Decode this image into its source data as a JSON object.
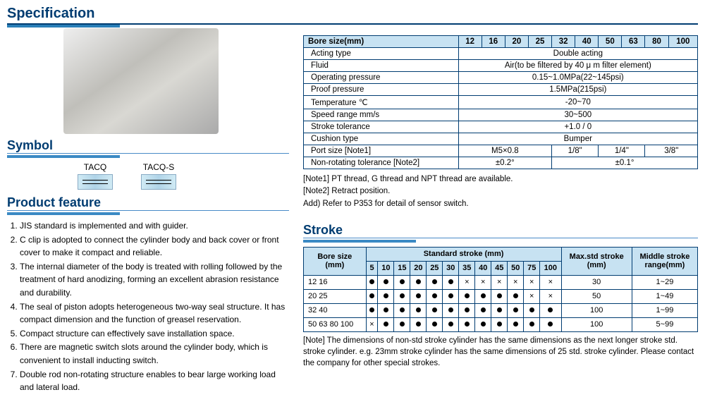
{
  "page": {
    "title": "Specification"
  },
  "symbol": {
    "header": "Symbol",
    "items": [
      "TACQ",
      "TACQ-S"
    ]
  },
  "productFeature": {
    "header": "Product feature",
    "items": [
      "JIS standard is implemented and with guider.",
      "C clip is adopted to connect the cylinder body and back cover or front cover to make it compact and reliable.",
      "The internal diameter of the body is treated with rolling followed by the treatment of hard anodizing, forming an excellent abrasion resistance and durability.",
      "The seal of piston adopts heterogeneous two-way seal structure. It has compact dimension and the function of greasel reservation.",
      "Compact structure can effectively save installation space.",
      "There are magnetic switch slots around the cylinder body, which is convenient to install inducting switch.",
      "Double rod non-rotating structure enables to bear large working load and lateral load."
    ]
  },
  "specTable": {
    "boreHeader": "Bore size(mm)",
    "boreSizes": [
      "12",
      "16",
      "20",
      "25",
      "32",
      "40",
      "50",
      "63",
      "80",
      "100"
    ],
    "rows": [
      {
        "label": "Acting type",
        "cells": [
          {
            "span": 10,
            "text": "Double acting"
          }
        ]
      },
      {
        "label": "Fluid",
        "cells": [
          {
            "span": 10,
            "text": "Air(to be filtered by 40 μ m filter element)"
          }
        ]
      },
      {
        "label": "Operating pressure",
        "cells": [
          {
            "span": 10,
            "text": "0.15~1.0MPa(22~145psi)"
          }
        ]
      },
      {
        "label": "Proof pressure",
        "cells": [
          {
            "span": 10,
            "text": "1.5MPa(215psi)"
          }
        ]
      },
      {
        "label": "Temperature  ℃",
        "cells": [
          {
            "span": 10,
            "text": "-20~70"
          }
        ]
      },
      {
        "label": "Speed range  mm/s",
        "cells": [
          {
            "span": 10,
            "text": "30~500"
          }
        ]
      },
      {
        "label": "Stroke tolerance",
        "cells": [
          {
            "span": 10,
            "text": "+1.0 / 0"
          }
        ]
      },
      {
        "label": "Cushion type",
        "cells": [
          {
            "span": 10,
            "text": "Bumper"
          }
        ]
      },
      {
        "label": "Port size  [Note1]",
        "cells": [
          {
            "span": 4,
            "text": "M5×0.8"
          },
          {
            "span": 2,
            "text": "1/8\""
          },
          {
            "span": 2,
            "text": "1/4\""
          },
          {
            "span": 2,
            "text": "3/8\""
          }
        ]
      },
      {
        "label": "Non-rotating tolerance [Note2]",
        "cells": [
          {
            "span": 4,
            "text": "±0.2°"
          },
          {
            "span": 6,
            "text": "±0.1°"
          }
        ]
      }
    ],
    "notes": [
      "[Note1] PT thread, G thread and NPT thread are available.",
      "[Note2] Retract position.",
      "Add) Refer to P353 for detail of sensor switch."
    ]
  },
  "strokeSection": {
    "header": "Stroke",
    "boreHeader": "Bore size(mm)",
    "stdHeader": "Standard stroke (mm)",
    "maxHeader": "Max.std stroke (mm)",
    "midHeader": "Middle stroke range(mm)",
    "stdCols": [
      "5",
      "10",
      "15",
      "20",
      "25",
      "30",
      "35",
      "40",
      "45",
      "50",
      "75",
      "100"
    ],
    "rows": [
      {
        "bore": "12 16",
        "marks": [
          "●",
          "●",
          "●",
          "●",
          "●",
          "●",
          "×",
          "×",
          "×",
          "×",
          "×",
          "×"
        ],
        "max": "30",
        "mid": "1~29"
      },
      {
        "bore": "20 25",
        "marks": [
          "●",
          "●",
          "●",
          "●",
          "●",
          "●",
          "●",
          "●",
          "●",
          "●",
          "×",
          "×"
        ],
        "max": "50",
        "mid": "1~49"
      },
      {
        "bore": "32 40",
        "marks": [
          "●",
          "●",
          "●",
          "●",
          "●",
          "●",
          "●",
          "●",
          "●",
          "●",
          "●",
          "●"
        ],
        "max": "100",
        "mid": "1~99"
      },
      {
        "bore": "50 63 80 100",
        "marks": [
          "×",
          "●",
          "●",
          "●",
          "●",
          "●",
          "●",
          "●",
          "●",
          "●",
          "●",
          "●"
        ],
        "max": "100",
        "mid": "5~99"
      }
    ],
    "note": "[Note] The dimensions of non-std stroke cylinder has the same dimensions as the next longer stroke std. stroke cylinder. e.g. 23mm stroke cylinder has the same dimensions of 25 std. stroke cylinder. Please contact the company for other special strokes."
  }
}
